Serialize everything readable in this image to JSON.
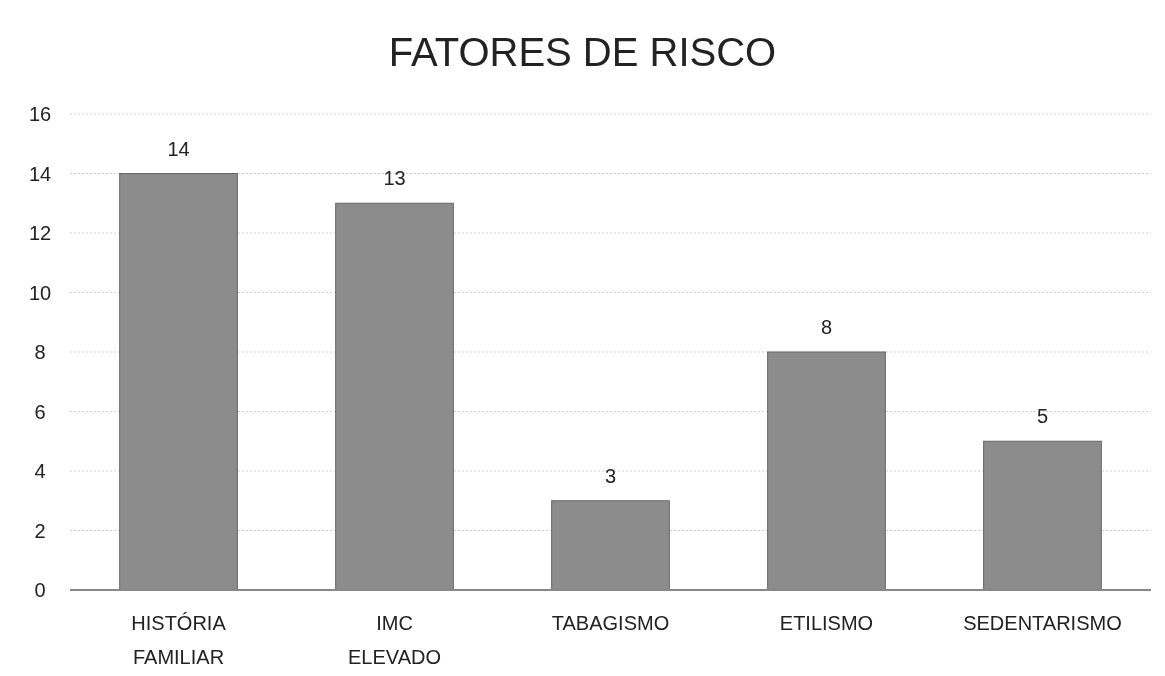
{
  "chart_data": {
    "type": "bar",
    "title": "FATORES DE RISCO",
    "categories": [
      "HISTÓRIA FAMILIAR",
      "IMC ELEVADO",
      "TABAGISMO",
      "ETILISMO",
      "SEDENTARISMO"
    ],
    "values": [
      14,
      13,
      3,
      8,
      5
    ],
    "color": "#8c8c8c",
    "ylim": [
      0,
      16
    ],
    "yticks": [
      0,
      2,
      4,
      6,
      8,
      10,
      12,
      14,
      16
    ],
    "grid": "y",
    "data_labels": true
  }
}
